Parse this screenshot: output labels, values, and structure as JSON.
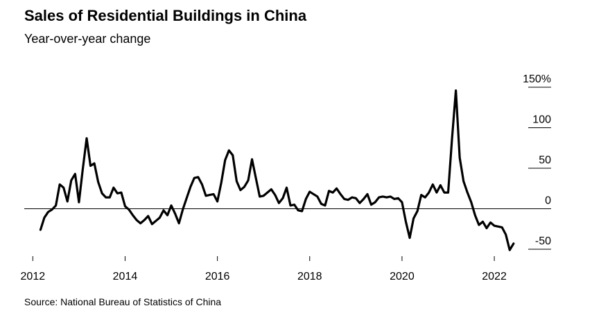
{
  "chart_data": {
    "type": "line",
    "title": "Sales of Residential Buildings in China",
    "subtitle": "Year-over-year change",
    "source": "Source: National Bureau of Statistics of China",
    "x": [
      2012.167,
      2012.25,
      2012.333,
      2012.417,
      2012.5,
      2012.583,
      2012.667,
      2012.75,
      2012.833,
      2012.917,
      2013.0,
      2013.083,
      2013.167,
      2013.25,
      2013.333,
      2013.417,
      2013.5,
      2013.583,
      2013.667,
      2013.75,
      2013.833,
      2013.917,
      2014.0,
      2014.083,
      2014.167,
      2014.25,
      2014.333,
      2014.417,
      2014.5,
      2014.583,
      2014.667,
      2014.75,
      2014.833,
      2014.917,
      2015.0,
      2015.083,
      2015.167,
      2015.25,
      2015.333,
      2015.417,
      2015.5,
      2015.583,
      2015.667,
      2015.75,
      2015.833,
      2015.917,
      2016.0,
      2016.083,
      2016.167,
      2016.25,
      2016.333,
      2016.417,
      2016.5,
      2016.583,
      2016.667,
      2016.75,
      2016.833,
      2016.917,
      2017.0,
      2017.083,
      2017.167,
      2017.25,
      2017.333,
      2017.417,
      2017.5,
      2017.583,
      2017.667,
      2017.75,
      2017.833,
      2017.917,
      2018.0,
      2018.083,
      2018.167,
      2018.25,
      2018.333,
      2018.417,
      2018.5,
      2018.583,
      2018.667,
      2018.75,
      2018.833,
      2018.917,
      2019.0,
      2019.083,
      2019.167,
      2019.25,
      2019.333,
      2019.417,
      2019.5,
      2019.583,
      2019.667,
      2019.75,
      2019.833,
      2019.917,
      2020.0,
      2020.083,
      2020.167,
      2020.25,
      2020.333,
      2020.417,
      2020.5,
      2020.583,
      2020.667,
      2020.75,
      2020.833,
      2020.917,
      2021.0,
      2021.083,
      2021.167,
      2021.25,
      2021.333,
      2021.417,
      2021.5,
      2021.583,
      2021.667,
      2021.75,
      2021.833,
      2021.917,
      2022.0,
      2022.083,
      2022.167,
      2022.25,
      2022.333,
      2022.417
    ],
    "series": [
      {
        "color": "#000000",
        "values": [
          -26,
          -11,
          -4,
          -1,
          4,
          30,
          26,
          9,
          35,
          43,
          8,
          49,
          87,
          53,
          56,
          33,
          19,
          14,
          14,
          26,
          19,
          20,
          3,
          -1,
          -8,
          -14,
          -18,
          -14,
          -9,
          -19,
          -15,
          -11,
          -2,
          -8,
          4,
          -6,
          -18,
          -1,
          13,
          27,
          38,
          39,
          30,
          16,
          17,
          18,
          9,
          32,
          60,
          72,
          66,
          34,
          23,
          27,
          35,
          61,
          38,
          15,
          16,
          20,
          24,
          17,
          7,
          13,
          26,
          4,
          5,
          -2,
          -3,
          12,
          21,
          18,
          15,
          6,
          4,
          22,
          20,
          25,
          18,
          12,
          11,
          14,
          13,
          7,
          12,
          18,
          5,
          8,
          14,
          15,
          14,
          15,
          12,
          13,
          8,
          -16,
          -36,
          -12,
          -3,
          17,
          14,
          20,
          30,
          20,
          29,
          20,
          20,
          86,
          146,
          63,
          34,
          20,
          8,
          -8,
          -20,
          -16,
          -24,
          -17,
          -21,
          -22,
          -23,
          -32,
          -51,
          -43
        ]
      }
    ],
    "xlim": [
      2011.8,
      2022.9
    ],
    "xticks": [
      2012,
      2014,
      2016,
      2018,
      2020,
      2022
    ],
    "ylim": [
      -50,
      150
    ],
    "yticks": [
      -50,
      0,
      50,
      100,
      {
        "value": 150,
        "label": "150%"
      }
    ]
  }
}
